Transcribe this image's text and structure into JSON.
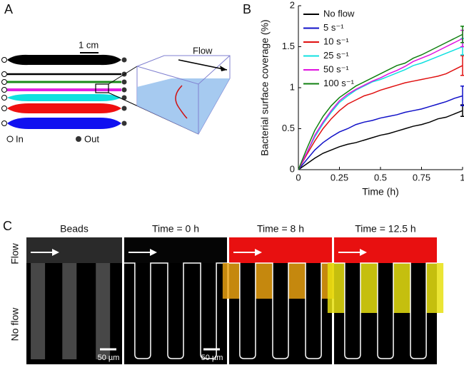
{
  "panel_a": {
    "label": "A",
    "scale": "1 cm",
    "flow": "Flow",
    "inlet": "In",
    "outlet": "Out"
  },
  "chart_data": {
    "type": "line",
    "label": "B",
    "xlabel": "Time (h)",
    "ylabel": "Bacterial surface coverage (%)",
    "x": [
      0,
      0.05,
      0.1,
      0.15,
      0.2,
      0.25,
      0.3,
      0.35,
      0.4,
      0.45,
      0.5,
      0.55,
      0.6,
      0.65,
      0.7,
      0.75,
      0.8,
      0.85,
      0.9,
      0.95,
      1
    ],
    "xlim": [
      0,
      1
    ],
    "xticks": [
      0,
      0.25,
      0.5,
      0.75,
      1
    ],
    "ylim": [
      0,
      2
    ],
    "yticks": [
      0,
      0.5,
      1,
      1.5,
      2
    ],
    "series": [
      {
        "name": "No flow",
        "color": "#000000",
        "error": 0.07,
        "values": [
          0,
          0.07,
          0.14,
          0.2,
          0.24,
          0.28,
          0.31,
          0.33,
          0.36,
          0.39,
          0.42,
          0.44,
          0.47,
          0.5,
          0.53,
          0.55,
          0.58,
          0.62,
          0.64,
          0.68,
          0.72
        ]
      },
      {
        "name": "5 s⁻¹",
        "color": "#1010c8",
        "error": 0.12,
        "values": [
          0,
          0.12,
          0.24,
          0.33,
          0.4,
          0.46,
          0.5,
          0.55,
          0.58,
          0.6,
          0.63,
          0.65,
          0.67,
          0.7,
          0.72,
          0.74,
          0.77,
          0.8,
          0.83,
          0.87,
          0.9
        ]
      },
      {
        "name": "10 s⁻¹",
        "color": "#e01010",
        "error": 0.12,
        "values": [
          0,
          0.18,
          0.35,
          0.5,
          0.62,
          0.72,
          0.8,
          0.85,
          0.9,
          0.93,
          0.97,
          1.0,
          1.03,
          1.06,
          1.08,
          1.1,
          1.12,
          1.14,
          1.17,
          1.22,
          1.27
        ]
      },
      {
        "name": "25 s⁻¹",
        "color": "#10e0e0",
        "error": 0.1,
        "values": [
          0,
          0.2,
          0.4,
          0.56,
          0.7,
          0.82,
          0.9,
          0.97,
          1.02,
          1.07,
          1.1,
          1.14,
          1.18,
          1.22,
          1.27,
          1.3,
          1.34,
          1.38,
          1.42,
          1.46,
          1.5
        ]
      },
      {
        "name": "50 s⁻¹",
        "color": "#e010e0",
        "error": 0.1,
        "values": [
          0,
          0.2,
          0.42,
          0.58,
          0.72,
          0.84,
          0.92,
          0.98,
          1.03,
          1.08,
          1.12,
          1.17,
          1.21,
          1.26,
          1.32,
          1.36,
          1.4,
          1.45,
          1.5,
          1.55,
          1.6
        ]
      },
      {
        "name": "100 s⁻¹",
        "color": "#108010",
        "error": 0.1,
        "values": [
          0,
          0.25,
          0.48,
          0.65,
          0.78,
          0.88,
          0.95,
          1.02,
          1.07,
          1.12,
          1.17,
          1.22,
          1.27,
          1.3,
          1.36,
          1.4,
          1.45,
          1.5,
          1.55,
          1.6,
          1.65
        ]
      }
    ]
  },
  "panel_c": {
    "label": "C",
    "titles": [
      "Beads",
      "Time = 0 h",
      "Time = 8 h",
      "Time = 12.5 h"
    ],
    "flow": "Flow",
    "no_flow": "No flow",
    "scale_bars": [
      "50 µm",
      "50 µm"
    ]
  }
}
